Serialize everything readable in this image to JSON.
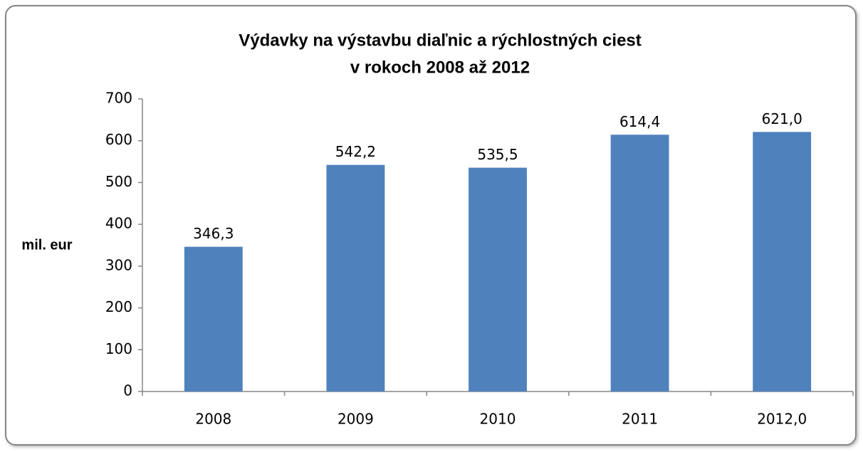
{
  "chart_data": {
    "type": "bar",
    "title": [
      "Výdavky na výstavbu diaľnic a rýchlostných ciest",
      "v rokoch 2008 až 2012"
    ],
    "y_label": "mil. eur",
    "categories": [
      "2008",
      "2009",
      "2010",
      "2011",
      "2012,0"
    ],
    "values": [
      346.3,
      542.2,
      535.5,
      614.4,
      621.0
    ],
    "value_labels": [
      "346,3",
      "542,2",
      "535,5",
      "614,4",
      "621,0"
    ],
    "color": "#4f81bd",
    "ylim": [
      0,
      700
    ],
    "yticks": [
      0,
      100,
      200,
      300,
      400,
      500,
      600,
      700
    ],
    "grid": false
  }
}
